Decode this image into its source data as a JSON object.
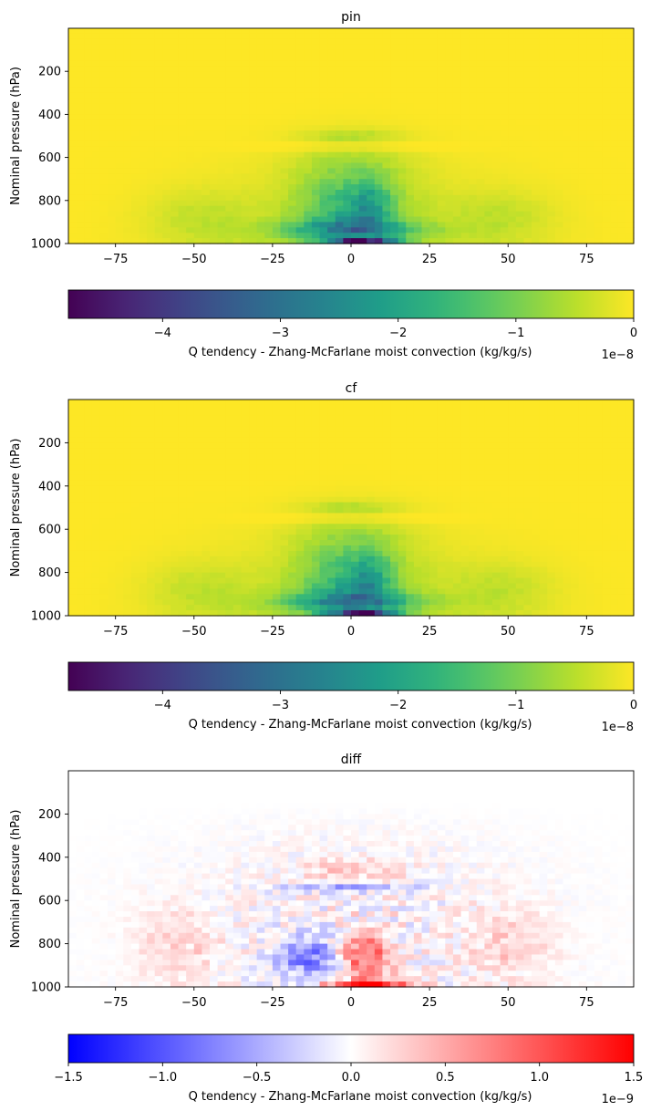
{
  "chart_data": [
    {
      "type": "heatmap",
      "title": "pin",
      "xlabel": "",
      "ylabel": "Nominal pressure (hPa)",
      "xlim": [
        -90,
        90
      ],
      "ylim": [
        1000,
        0
      ],
      "x_ticks": [
        -75,
        -50,
        -25,
        0,
        25,
        50,
        75
      ],
      "y_ticks": [
        200,
        400,
        600,
        800,
        1000
      ],
      "colormap": "viridis",
      "colorbar": {
        "label": "Q tendency - Zhang-McFarlane moist convection (kg/kg/s)",
        "range": [
          -4.8,
          0
        ],
        "ticks": [
          -4,
          -3,
          -2,
          -1,
          0
        ],
        "exponent": "1e−8"
      },
      "features": [
        {
          "lat": 5,
          "pressure": 1000,
          "value": -4.8
        },
        {
          "lat": 5,
          "pressure": 860,
          "value": -2.6
        },
        {
          "lat": -5,
          "pressure": 920,
          "value": -2.2
        },
        {
          "lat": 0,
          "pressure": 700,
          "value": -1.3
        },
        {
          "lat": 0,
          "pressure": 500,
          "value": -0.6
        },
        {
          "lat": -50,
          "pressure": 880,
          "value": -0.5
        },
        {
          "lat": 50,
          "pressure": 880,
          "value": -0.4
        }
      ]
    },
    {
      "type": "heatmap",
      "title": "cf",
      "xlabel": "",
      "ylabel": "Nominal pressure (hPa)",
      "xlim": [
        -90,
        90
      ],
      "ylim": [
        1000,
        0
      ],
      "x_ticks": [
        -75,
        -50,
        -25,
        0,
        25,
        50,
        75
      ],
      "y_ticks": [
        200,
        400,
        600,
        800,
        1000
      ],
      "colormap": "viridis",
      "colorbar": {
        "label": "Q tendency - Zhang-McFarlane moist convection (kg/kg/s)",
        "range": [
          -4.8,
          0
        ],
        "ticks": [
          -4,
          -3,
          -2,
          -1,
          0
        ],
        "exponent": "1e−8"
      },
      "features": [
        {
          "lat": 5,
          "pressure": 1000,
          "value": -4.8
        },
        {
          "lat": 5,
          "pressure": 860,
          "value": -2.6
        },
        {
          "lat": -5,
          "pressure": 920,
          "value": -2.2
        },
        {
          "lat": 0,
          "pressure": 700,
          "value": -1.3
        },
        {
          "lat": 0,
          "pressure": 500,
          "value": -0.6
        },
        {
          "lat": -50,
          "pressure": 880,
          "value": -0.5
        },
        {
          "lat": 50,
          "pressure": 880,
          "value": -0.4
        }
      ]
    },
    {
      "type": "heatmap",
      "title": "diff",
      "xlabel": "",
      "ylabel": "Nominal pressure (hPa)",
      "xlim": [
        -90,
        90
      ],
      "ylim": [
        1000,
        0
      ],
      "x_ticks": [
        -75,
        -50,
        -25,
        0,
        25,
        50,
        75
      ],
      "y_ticks": [
        200,
        400,
        600,
        800,
        1000
      ],
      "colormap": "bwr",
      "colorbar": {
        "label": "Q tendency - Zhang-McFarlane moist convection (kg/kg/s)",
        "range": [
          -1.5,
          1.5
        ],
        "ticks": [
          -1.5,
          -1.0,
          -0.5,
          0.0,
          0.5,
          1.0,
          1.5
        ],
        "tick_labels": [
          "−1.5",
          "−1.0",
          "−0.5",
          "0.0",
          "0.5",
          "1.0",
          "1.5"
        ],
        "exponent": "1e−9"
      },
      "features": [
        {
          "lat": 5,
          "pressure": 990,
          "value": 1.5
        },
        {
          "lat": 5,
          "pressure": 850,
          "value": 0.7
        },
        {
          "lat": -15,
          "pressure": 880,
          "value": -0.7
        },
        {
          "lat": 0,
          "pressure": 540,
          "value": -0.6
        },
        {
          "lat": 0,
          "pressure": 460,
          "value": 0.3
        },
        {
          "lat": 50,
          "pressure": 800,
          "value": 0.2
        },
        {
          "lat": -50,
          "pressure": 800,
          "value": 0.2
        }
      ]
    }
  ]
}
